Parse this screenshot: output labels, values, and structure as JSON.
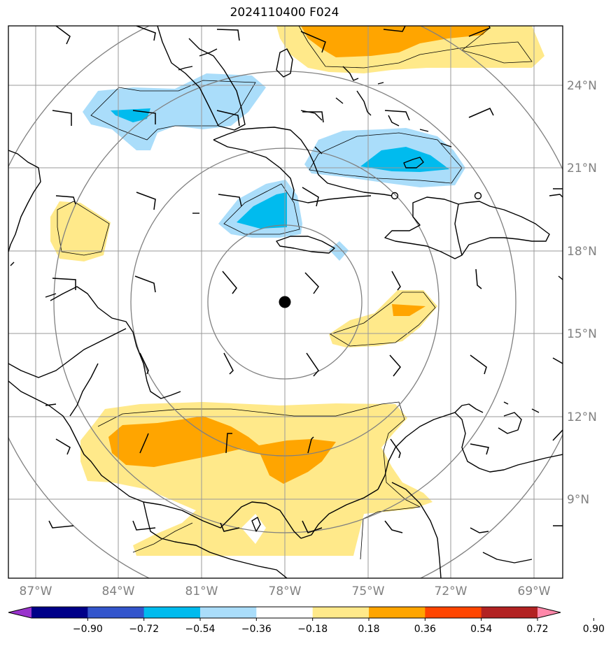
{
  "title": "2024110400 F024",
  "longitude_labels": [
    "87°W",
    "84°W",
    "81°W",
    "78°W",
    "75°W",
    "72°W",
    "69°W"
  ],
  "latitude_labels": [
    "24°N",
    "21°N",
    "18°N",
    "15°N",
    "12°N",
    "9°N"
  ],
  "center_marker": {
    "lon": -78.0,
    "lat": 16.1
  },
  "colorbar": {
    "tick_labels": [
      "−0.90",
      "−0.72",
      "−0.54",
      "−0.36",
      "−0.18",
      "0.18",
      "0.36",
      "0.54",
      "0.72",
      "0.90"
    ],
    "colors": [
      "#9933cc",
      "#000088",
      "#3355cc",
      "#00bbee",
      "#aaddfa",
      "#ffffff",
      "#ffe98a",
      "#ffa500",
      "#ff4500",
      "#b22222",
      "#ff88aa"
    ]
  },
  "colors": {
    "light_blue": "#aaddfa",
    "medium_blue": "#00bbee",
    "light_yellow": "#ffe98a",
    "orange": "#ffa500",
    "grid": "#999999",
    "range_rings": "#808080"
  }
}
